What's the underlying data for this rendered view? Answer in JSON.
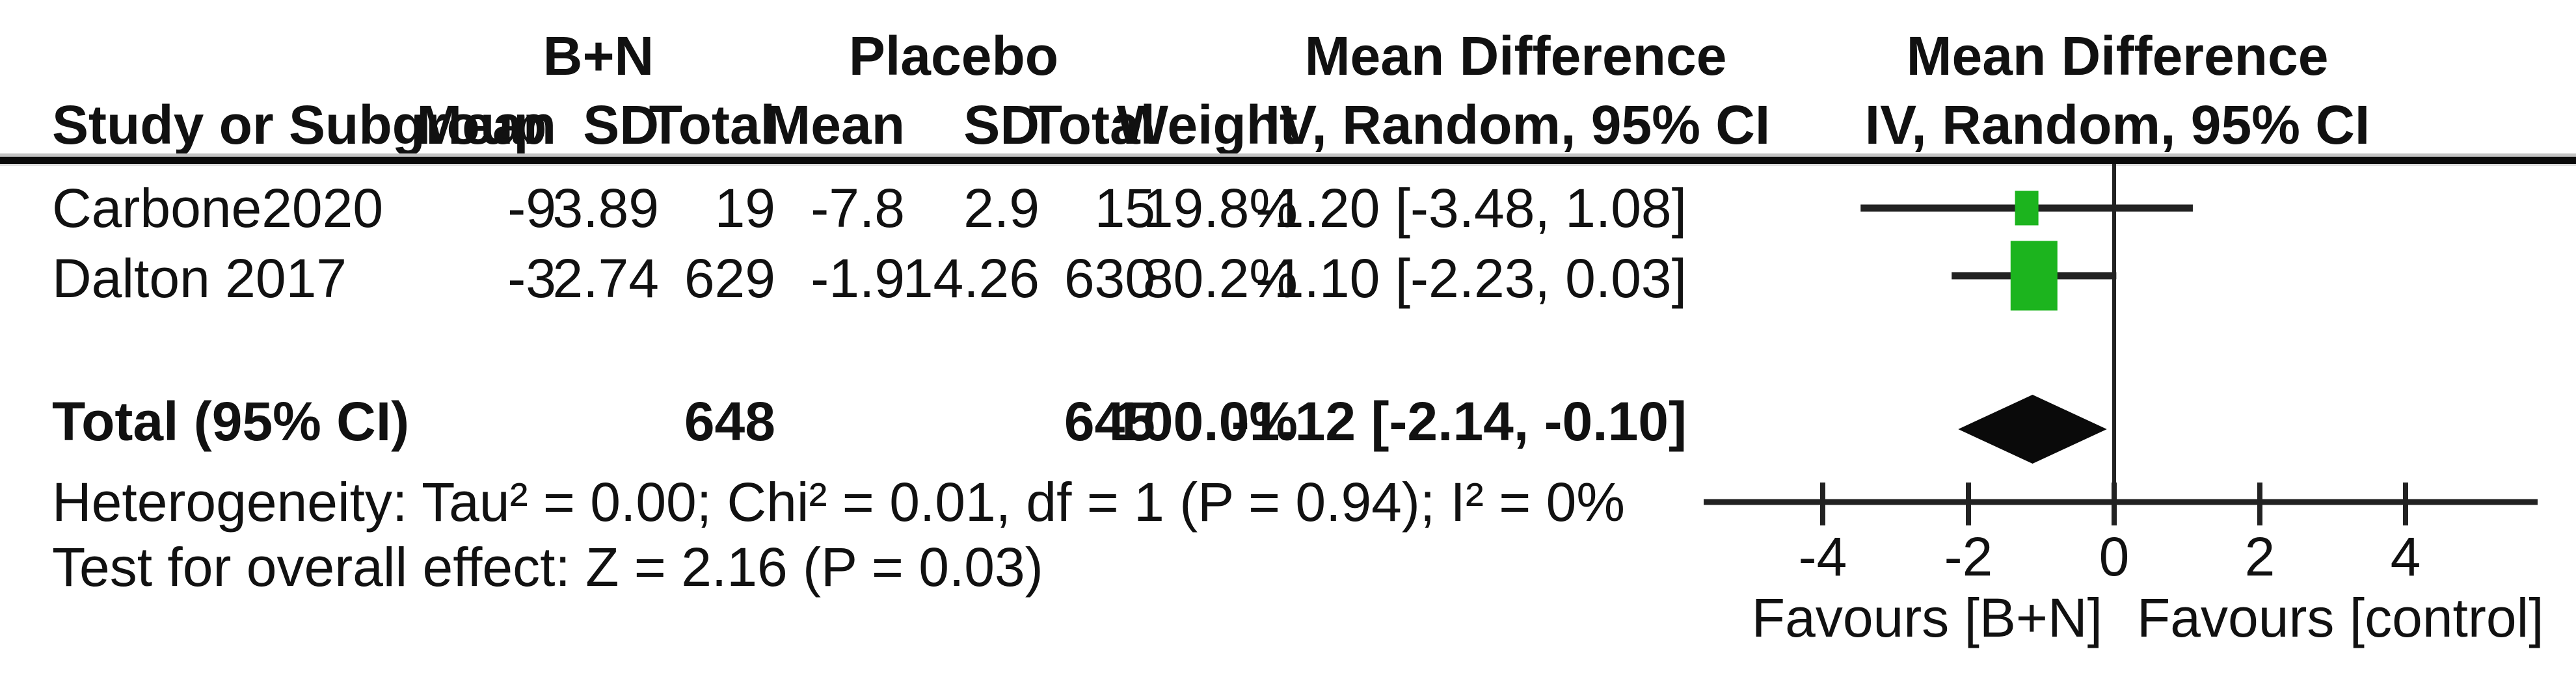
{
  "header": {
    "group1_label": "B+N",
    "group2_label": "Placebo",
    "effect_col_title": "Mean Difference",
    "effect_col_subtitle": "IV, Random, 95% CI",
    "plot_col_title": "Mean Difference",
    "plot_col_subtitle": "IV, Random, 95% CI",
    "study_col": "Study or Subgroup",
    "mean_col": "Mean",
    "sd_col": "SD",
    "total_col": "Total",
    "weight_col": "Weight"
  },
  "rows": [
    {
      "study": "Carbone2020",
      "mean1": "-9",
      "sd1": "3.89",
      "total1": "19",
      "mean2": "-7.8",
      "sd2": "2.9",
      "total2": "15",
      "weight": "19.8%",
      "md": "-1.20 [-3.48, 1.08]"
    },
    {
      "study": "Dalton 2017",
      "mean1": "-3",
      "sd1": "2.74",
      "total1": "629",
      "mean2": "-1.9",
      "sd2": "14.26",
      "total2": "630",
      "weight": "80.2%",
      "md": "-1.10 [-2.23, 0.03]"
    }
  ],
  "total_row": {
    "label": "Total (95% CI)",
    "total1": "648",
    "total2": "645",
    "weight": "100.0%",
    "md": "-1.12 [-2.14, -0.10]"
  },
  "footnotes": {
    "heterogeneity": "Heterogeneity: Tau² = 0.00; Chi² = 0.01, df = 1 (P = 0.94); I² = 0%",
    "overall_effect": "Test for overall effect: Z = 2.16 (P = 0.03)"
  },
  "chart_data": {
    "type": "forest",
    "effect_measure": "Mean Difference",
    "model": "IV, Random, 95% CI",
    "x_ticks": [
      -4,
      -2,
      0,
      2,
      4
    ],
    "x_range": [
      -5.6,
      5.8
    ],
    "zero_line": 0,
    "grid": false,
    "studies": [
      {
        "label": "Carbone2020",
        "estimate": -1.2,
        "ci_lower": -3.48,
        "ci_upper": 1.08,
        "weight_pct": 19.8
      },
      {
        "label": "Dalton 2017",
        "estimate": -1.1,
        "ci_lower": -2.23,
        "ci_upper": 0.03,
        "weight_pct": 80.2
      }
    ],
    "overall": {
      "label": "Total (95% CI)",
      "estimate": -1.12,
      "ci_lower": -2.14,
      "ci_upper": -0.1
    },
    "favours_left": "Favours [B+N]",
    "favours_right": "Favours [control]",
    "marker_color": "#1cb41e",
    "diamond_color": "#0a0a0a",
    "line_color": "#222222"
  }
}
